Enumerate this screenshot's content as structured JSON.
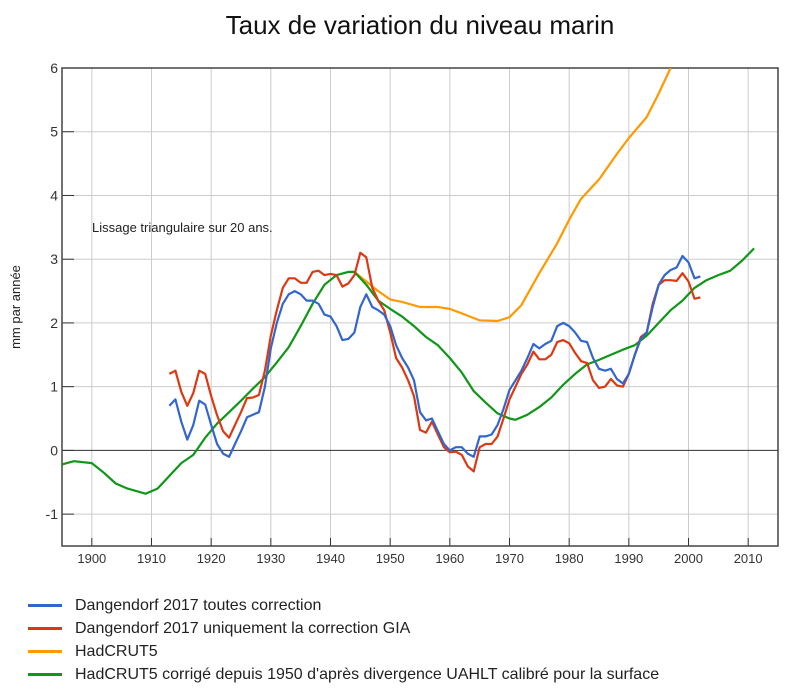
{
  "chart_data": {
    "type": "line",
    "title": "Taux de variation du niveau marin",
    "xlabel": "",
    "ylabel": "mm par année",
    "annotation": "Lissage triangulaire sur 20 ans.",
    "xlim": [
      1895,
      2015
    ],
    "ylim": [
      -1.5,
      6
    ],
    "xticks": [
      1900,
      1910,
      1920,
      1930,
      1940,
      1950,
      1960,
      1970,
      1980,
      1990,
      2000,
      2010
    ],
    "yticks": [
      -1,
      0,
      1,
      2,
      3,
      4,
      5,
      6
    ],
    "grid": true,
    "legend_position": "bottom",
    "series": [
      {
        "name": "Dangendorf 2017 toutes correction",
        "color": "#3366cc",
        "x": [
          1913,
          1914,
          1915,
          1916,
          1917,
          1918,
          1919,
          1920,
          1921,
          1922,
          1923,
          1924,
          1925,
          1926,
          1927,
          1928,
          1929,
          1930,
          1931,
          1932,
          1933,
          1934,
          1935,
          1936,
          1937,
          1938,
          1939,
          1940,
          1941,
          1942,
          1943,
          1944,
          1945,
          1946,
          1947,
          1948,
          1949,
          1950,
          1951,
          1952,
          1953,
          1954,
          1955,
          1956,
          1957,
          1958,
          1959,
          1960,
          1961,
          1962,
          1963,
          1964,
          1965,
          1966,
          1967,
          1968,
          1969,
          1970,
          1971,
          1972,
          1973,
          1974,
          1975,
          1976,
          1977,
          1978,
          1979,
          1980,
          1981,
          1982,
          1983,
          1984,
          1985,
          1986,
          1987,
          1988,
          1989,
          1990,
          1991,
          1992,
          1993,
          1994,
          1995,
          1996,
          1997,
          1998,
          1999,
          2000,
          2001,
          2002
        ],
        "y": [
          0.7,
          0.8,
          0.45,
          0.17,
          0.4,
          0.78,
          0.72,
          0.4,
          0.1,
          -0.05,
          -0.1,
          0.1,
          0.3,
          0.52,
          0.56,
          0.6,
          1.0,
          1.6,
          2.0,
          2.3,
          2.45,
          2.5,
          2.45,
          2.35,
          2.35,
          2.3,
          2.13,
          2.1,
          1.95,
          1.73,
          1.75,
          1.85,
          2.25,
          2.45,
          2.25,
          2.2,
          2.13,
          1.95,
          1.65,
          1.45,
          1.3,
          1.1,
          0.6,
          0.47,
          0.5,
          0.3,
          0.1,
          0.0,
          0.05,
          0.05,
          -0.05,
          -0.1,
          0.22,
          0.22,
          0.25,
          0.4,
          0.65,
          0.95,
          1.1,
          1.25,
          1.45,
          1.67,
          1.6,
          1.67,
          1.72,
          1.95,
          2.0,
          1.95,
          1.85,
          1.72,
          1.7,
          1.45,
          1.28,
          1.25,
          1.28,
          1.12,
          1.05,
          1.2,
          1.5,
          1.75,
          1.85,
          2.25,
          2.6,
          2.75,
          2.83,
          2.87,
          3.05,
          2.95,
          2.7,
          2.73
        ]
      },
      {
        "name": "Dangendorf 2017 uniquement la correction GIA",
        "color": "#dc3912",
        "x": [
          1913,
          1914,
          1915,
          1916,
          1917,
          1918,
          1919,
          1920,
          1921,
          1922,
          1923,
          1924,
          1925,
          1926,
          1927,
          1928,
          1929,
          1930,
          1931,
          1932,
          1933,
          1934,
          1935,
          1936,
          1937,
          1938,
          1939,
          1940,
          1941,
          1942,
          1943,
          1944,
          1945,
          1946,
          1947,
          1948,
          1949,
          1950,
          1951,
          1952,
          1953,
          1954,
          1955,
          1956,
          1957,
          1958,
          1959,
          1960,
          1961,
          1962,
          1963,
          1964,
          1965,
          1966,
          1967,
          1968,
          1969,
          1970,
          1971,
          1972,
          1973,
          1974,
          1975,
          1976,
          1977,
          1978,
          1979,
          1980,
          1981,
          1982,
          1983,
          1984,
          1985,
          1986,
          1987,
          1988,
          1989,
          1990,
          1991,
          1992,
          1993,
          1994,
          1995,
          1996,
          1997,
          1998,
          1999,
          2000,
          2001,
          2002
        ],
        "y": [
          1.2,
          1.25,
          0.92,
          0.7,
          0.9,
          1.25,
          1.2,
          0.85,
          0.55,
          0.3,
          0.2,
          0.4,
          0.6,
          0.82,
          0.83,
          0.87,
          1.25,
          1.8,
          2.2,
          2.55,
          2.7,
          2.7,
          2.63,
          2.63,
          2.8,
          2.82,
          2.75,
          2.77,
          2.75,
          2.57,
          2.62,
          2.75,
          3.1,
          3.03,
          2.55,
          2.35,
          2.2,
          1.85,
          1.45,
          1.3,
          1.1,
          0.85,
          0.32,
          0.28,
          0.45,
          0.25,
          0.05,
          -0.03,
          -0.02,
          -0.07,
          -0.25,
          -0.33,
          0.05,
          0.1,
          0.1,
          0.22,
          0.5,
          0.8,
          1.0,
          1.2,
          1.35,
          1.55,
          1.43,
          1.43,
          1.5,
          1.7,
          1.73,
          1.68,
          1.53,
          1.4,
          1.37,
          1.1,
          0.98,
          1.0,
          1.12,
          1.02,
          1.0,
          1.2,
          1.5,
          1.78,
          1.85,
          2.3,
          2.6,
          2.67,
          2.67,
          2.66,
          2.78,
          2.65,
          2.38,
          2.4
        ]
      },
      {
        "name": "HadCRUT5",
        "color": "#ff9900",
        "x": [
          1944,
          1946,
          1948,
          1950,
          1952,
          1955,
          1958,
          1960,
          1962,
          1965,
          1968,
          1970,
          1972,
          1975,
          1978,
          1980,
          1982,
          1985,
          1988,
          1990,
          1993,
          1995,
          1997
        ],
        "y": [
          2.8,
          2.65,
          2.5,
          2.37,
          2.33,
          2.25,
          2.25,
          2.22,
          2.15,
          2.04,
          2.03,
          2.09,
          2.28,
          2.78,
          3.25,
          3.62,
          3.95,
          4.25,
          4.65,
          4.9,
          5.23,
          5.6,
          6.0
        ]
      },
      {
        "name": "HadCRUT5 corrigé depuis 1950 d'après divergence UAHLT calibré pour la surface",
        "color": "#109618",
        "x": [
          1895,
          1897,
          1900,
          1902,
          1904,
          1906,
          1909,
          1911,
          1913,
          1915,
          1917,
          1919,
          1921,
          1923,
          1925,
          1927,
          1929,
          1931,
          1933,
          1935,
          1937,
          1939,
          1941,
          1943,
          1944,
          1946,
          1948,
          1950,
          1952,
          1954,
          1956,
          1958,
          1960,
          1962,
          1964,
          1966,
          1968,
          1970,
          1971,
          1973,
          1975,
          1977,
          1979,
          1981,
          1983,
          1985,
          1987,
          1989,
          1991,
          1993,
          1995,
          1997,
          1999,
          2001,
          2003,
          2005,
          2007,
          2009,
          2011
        ],
        "y": [
          -0.22,
          -0.17,
          -0.2,
          -0.35,
          -0.52,
          -0.6,
          -0.68,
          -0.6,
          -0.4,
          -0.2,
          -0.07,
          0.2,
          0.42,
          0.6,
          0.78,
          0.97,
          1.15,
          1.38,
          1.62,
          1.95,
          2.3,
          2.6,
          2.75,
          2.8,
          2.8,
          2.6,
          2.35,
          2.22,
          2.1,
          1.95,
          1.78,
          1.65,
          1.45,
          1.22,
          0.93,
          0.75,
          0.58,
          0.5,
          0.48,
          0.56,
          0.68,
          0.83,
          1.03,
          1.2,
          1.35,
          1.42,
          1.5,
          1.58,
          1.65,
          1.8,
          2.0,
          2.2,
          2.35,
          2.55,
          2.67,
          2.75,
          2.82,
          2.98,
          3.17
        ]
      }
    ]
  }
}
